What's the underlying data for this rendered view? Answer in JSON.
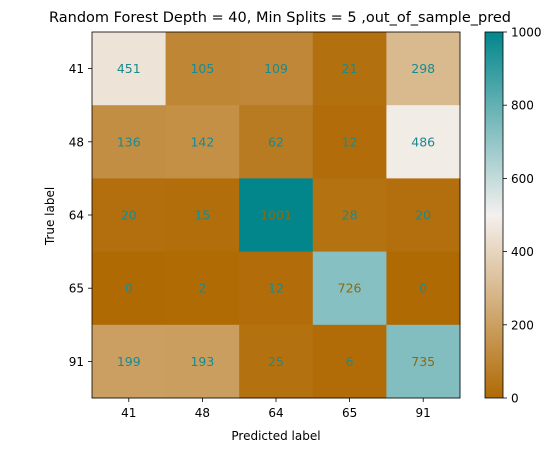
{
  "chart_data": {
    "type": "heatmap",
    "title": "Random Forest Depth = 40, Min Splits = 5 ,out_of_sample_pred",
    "xlabel": "Predicted label",
    "ylabel": "True label",
    "x_categories": [
      "41",
      "48",
      "64",
      "65",
      "91"
    ],
    "y_categories": [
      "41",
      "48",
      "64",
      "65",
      "91"
    ],
    "values": [
      [
        451,
        105,
        109,
        21,
        298
      ],
      [
        136,
        142,
        62,
        12,
        486
      ],
      [
        20,
        15,
        1001,
        28,
        20
      ],
      [
        0,
        2,
        12,
        726,
        0
      ],
      [
        199,
        193,
        25,
        6,
        735
      ]
    ],
    "colorbar": {
      "range": [
        0,
        1000
      ],
      "ticks": [
        "0",
        "200",
        "400",
        "600",
        "800",
        "1000"
      ]
    },
    "colormap": {
      "low": "#b06a04",
      "mid": "#f4f0ee",
      "high": "#02868c"
    },
    "text_colors": {
      "on_light": "#1a8a90",
      "on_dark_teal": "#8a6a10"
    }
  }
}
